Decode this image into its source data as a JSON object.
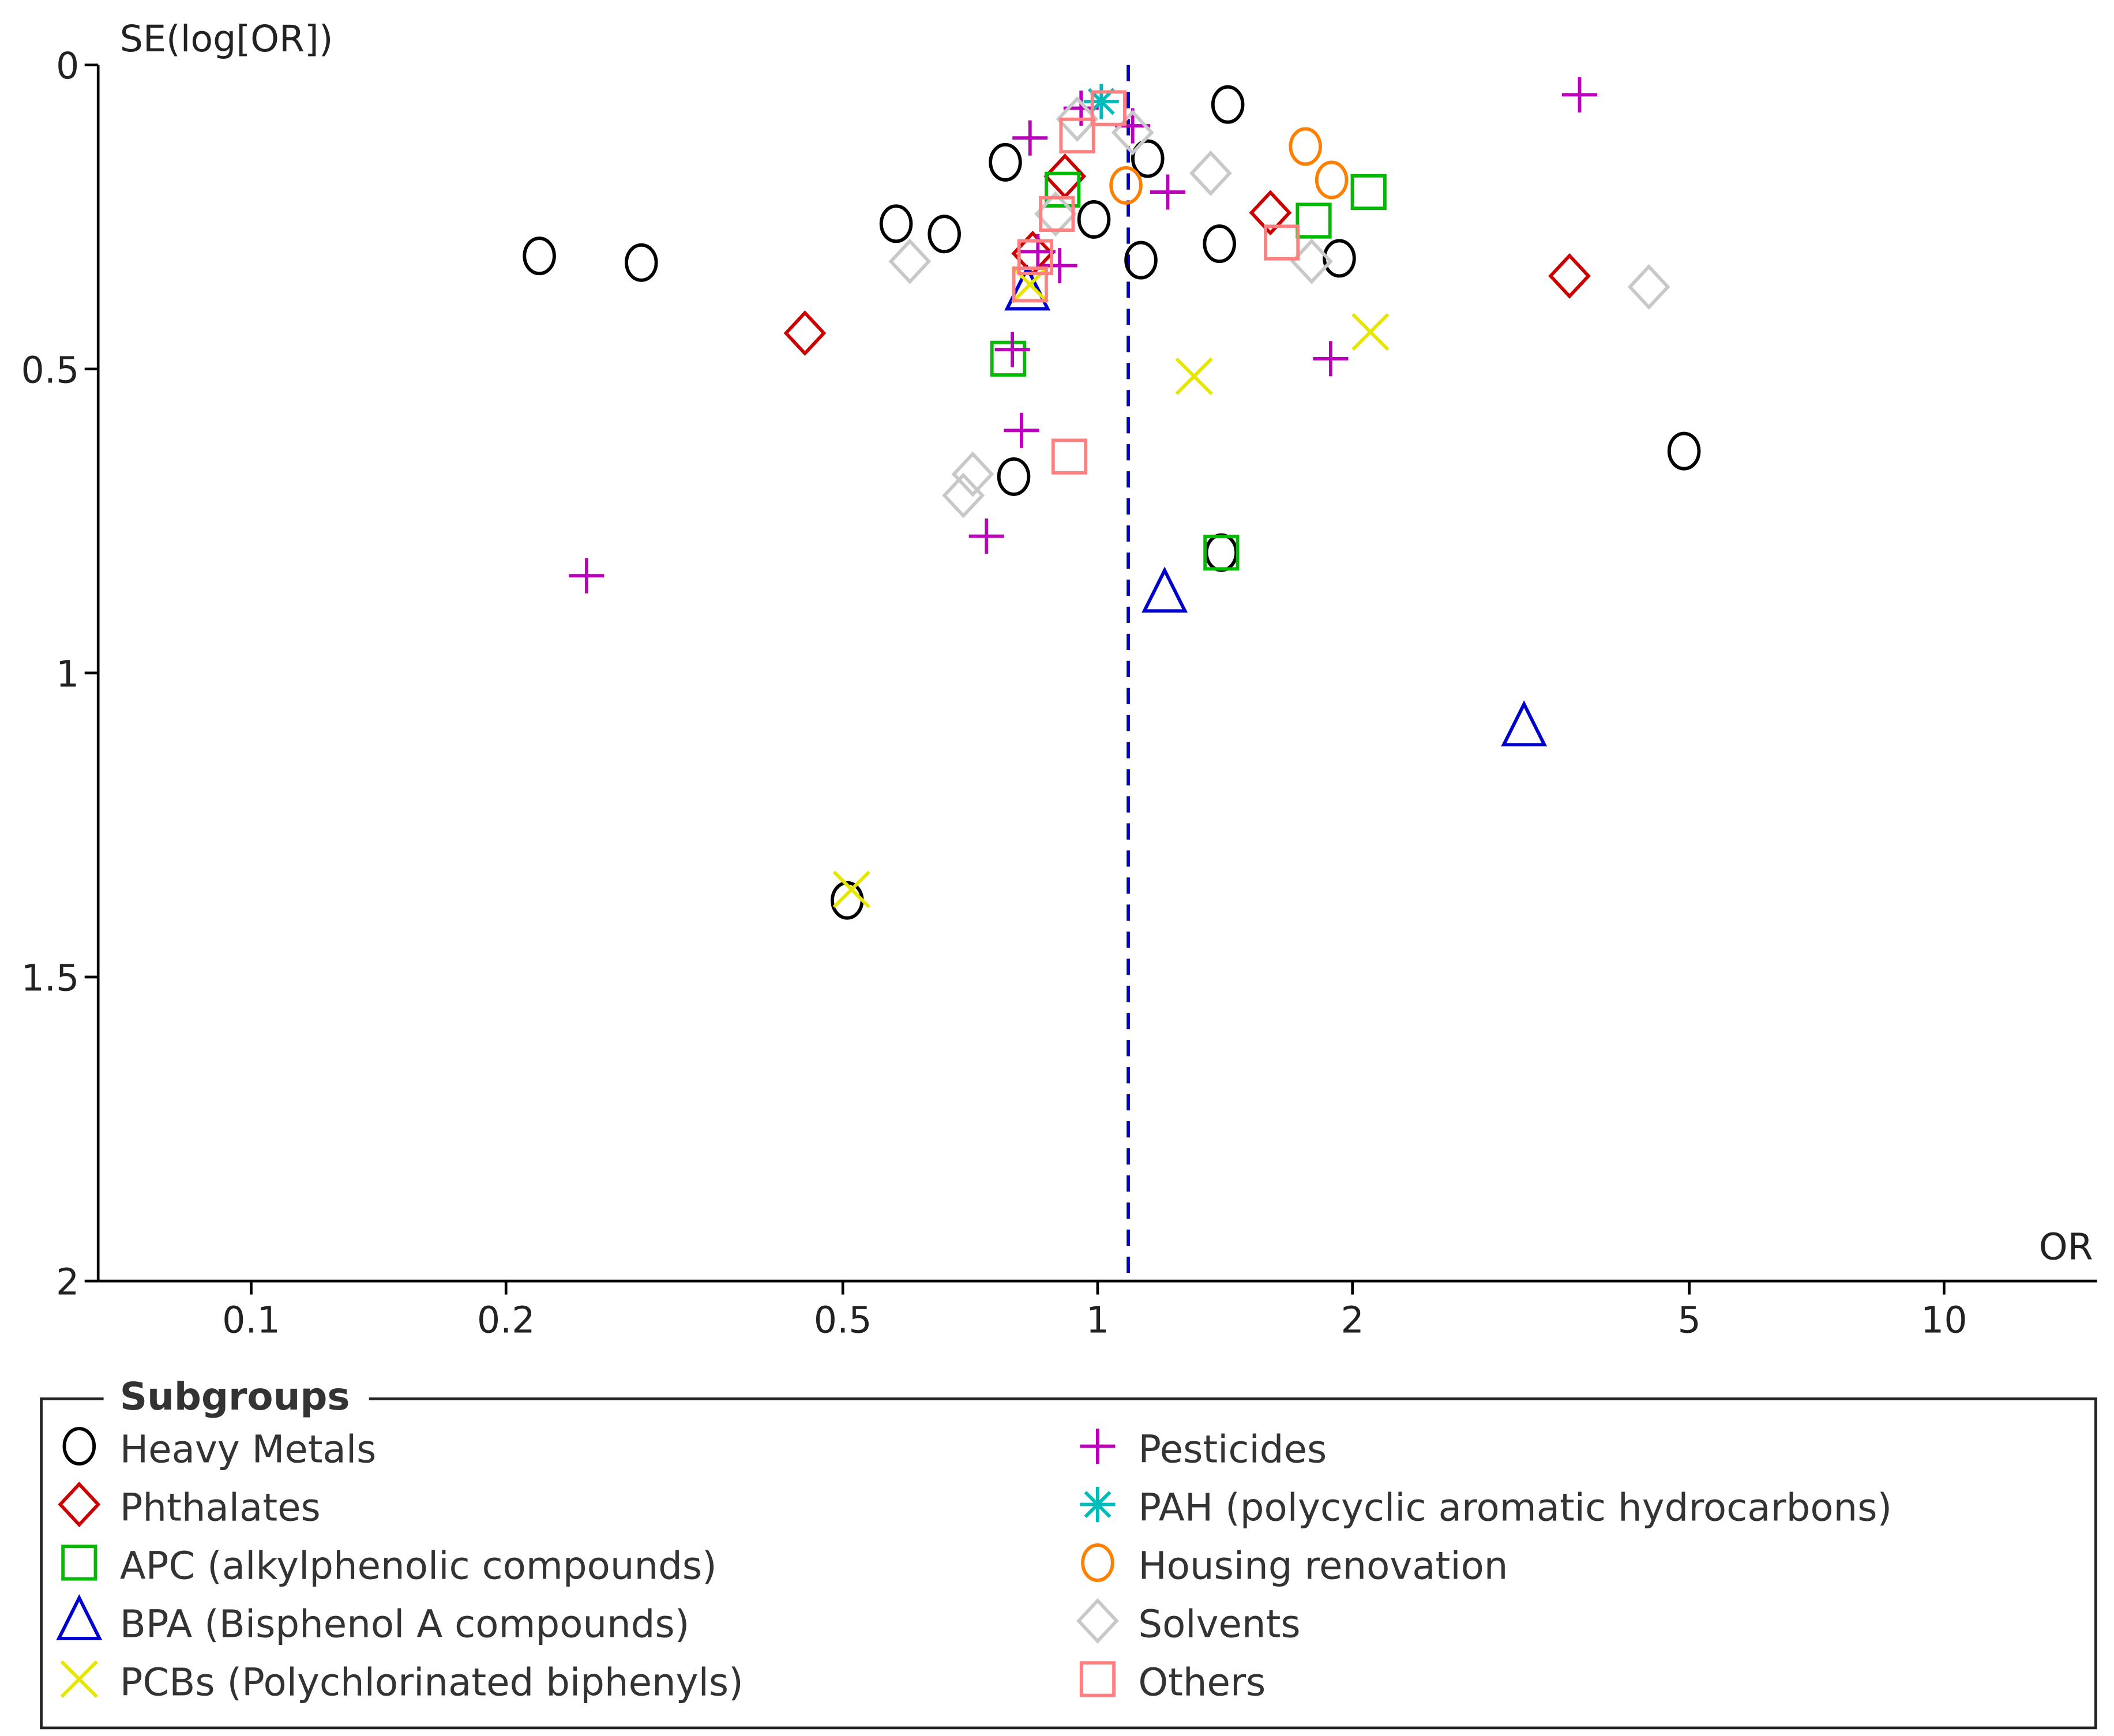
{
  "chart_data": {
    "type": "scatter",
    "title": "",
    "xlabel": "OR",
    "ylabel": "SE(log[OR])",
    "xscale": "log",
    "xlim": [
      0.063,
      14.5
    ],
    "ylim": [
      0,
      2
    ],
    "y_inverted": true,
    "xticks": [
      0.1,
      0.2,
      0.5,
      1,
      2,
      5,
      10
    ],
    "xtick_labels": [
      "0.1",
      "0.2",
      "0.5",
      "1",
      "2",
      "5",
      "10"
    ],
    "yticks": [
      0,
      0.5,
      1,
      1.5,
      2
    ],
    "ytick_labels": [
      "0",
      "0.5",
      "1",
      "1.5",
      "2"
    ],
    "pooled_or": 1.087,
    "legend": {
      "title": "Subgroups",
      "placement": "bottom"
    },
    "series": [
      {
        "name": "Heavy Metals",
        "marker": "circle",
        "color": "#000000",
        "points": [
          [
            0.219,
            0.314
          ],
          [
            0.289,
            0.325
          ],
          [
            0.578,
            0.261
          ],
          [
            0.659,
            0.278
          ],
          [
            0.778,
            0.16
          ],
          [
            0.796,
            0.677
          ],
          [
            0.506,
            1.374
          ],
          [
            0.99,
            0.254
          ],
          [
            1.146,
            0.154
          ],
          [
            1.125,
            0.321
          ],
          [
            1.425,
            0.065
          ],
          [
            1.393,
            0.294
          ],
          [
            1.93,
            0.318
          ],
          [
            4.93,
            0.635
          ],
          [
            1.4,
            0.802
          ]
        ]
      },
      {
        "name": "Phthalates",
        "marker": "diamond",
        "color": "#cc0000",
        "points": [
          [
            0.451,
            0.441
          ],
          [
            0.915,
            0.183
          ],
          [
            0.838,
            0.31
          ],
          [
            1.6,
            0.243
          ],
          [
            3.61,
            0.347
          ]
        ]
      },
      {
        "name": "APC (alkylphenolic compounds)",
        "marker": "square",
        "color": "#00bb00",
        "points": [
          [
            0.909,
            0.205
          ],
          [
            0.784,
            0.483
          ],
          [
            1.8,
            0.256
          ],
          [
            2.09,
            0.209
          ],
          [
            1.4,
            0.802
          ]
        ]
      },
      {
        "name": "BPA (Bisphenol A compounds)",
        "marker": "triangle",
        "color": "#0000cc",
        "points": [
          [
            0.826,
            0.372
          ],
          [
            1.2,
            0.869
          ],
          [
            3.19,
            1.089
          ]
        ]
      },
      {
        "name": "PCBs (Polychlorinated biphenyls)",
        "marker": "x",
        "color": "#e6e600",
        "points": [
          [
            0.512,
            1.356
          ],
          [
            1.3,
            0.512
          ],
          [
            2.1,
            0.439
          ],
          [
            0.832,
            0.361
          ]
        ]
      },
      {
        "name": "Pesticides",
        "marker": "plus",
        "color": "#bb00bb",
        "points": [
          [
            3.71,
            0.049
          ],
          [
            0.956,
            0.071
          ],
          [
            0.832,
            0.12
          ],
          [
            1.1,
            0.1
          ],
          [
            1.21,
            0.209
          ],
          [
            0.902,
            0.33
          ],
          [
            0.85,
            0.307
          ],
          [
            0.793,
            0.468
          ],
          [
            1.885,
            0.483
          ],
          [
            0.813,
            0.601
          ],
          [
            0.739,
            0.775
          ],
          [
            0.249,
            0.84
          ]
        ]
      },
      {
        "name": "PAH (polycyclic aromatic hydrocarbons)",
        "marker": "asterisk",
        "color": "#00bbbb",
        "points": [
          [
            1.01,
            0.06
          ]
        ]
      },
      {
        "name": "Housing renovation",
        "marker": "circle",
        "color": "#ff8000",
        "points": [
          [
            1.76,
            0.134
          ],
          [
            1.89,
            0.189
          ],
          [
            1.08,
            0.198
          ]
        ]
      },
      {
        "name": "Solvents",
        "marker": "diamond",
        "color": "#c8c8c8",
        "points": [
          [
            0.6,
            0.323
          ],
          [
            0.946,
            0.089
          ],
          [
            1.1,
            0.111
          ],
          [
            1.36,
            0.178
          ],
          [
            1.79,
            0.323
          ],
          [
            4.48,
            0.365
          ],
          [
            0.712,
            0.673
          ],
          [
            0.694,
            0.708
          ],
          [
            0.892,
            0.245
          ]
        ]
      },
      {
        "name": "Others",
        "marker": "square",
        "color": "#ff8080",
        "points": [
          [
            1.03,
            0.071
          ],
          [
            0.946,
            0.116
          ],
          [
            0.895,
            0.245
          ],
          [
            0.844,
            0.316
          ],
          [
            0.832,
            0.361
          ],
          [
            1.65,
            0.292
          ],
          [
            0.926,
            0.644
          ]
        ]
      }
    ]
  }
}
